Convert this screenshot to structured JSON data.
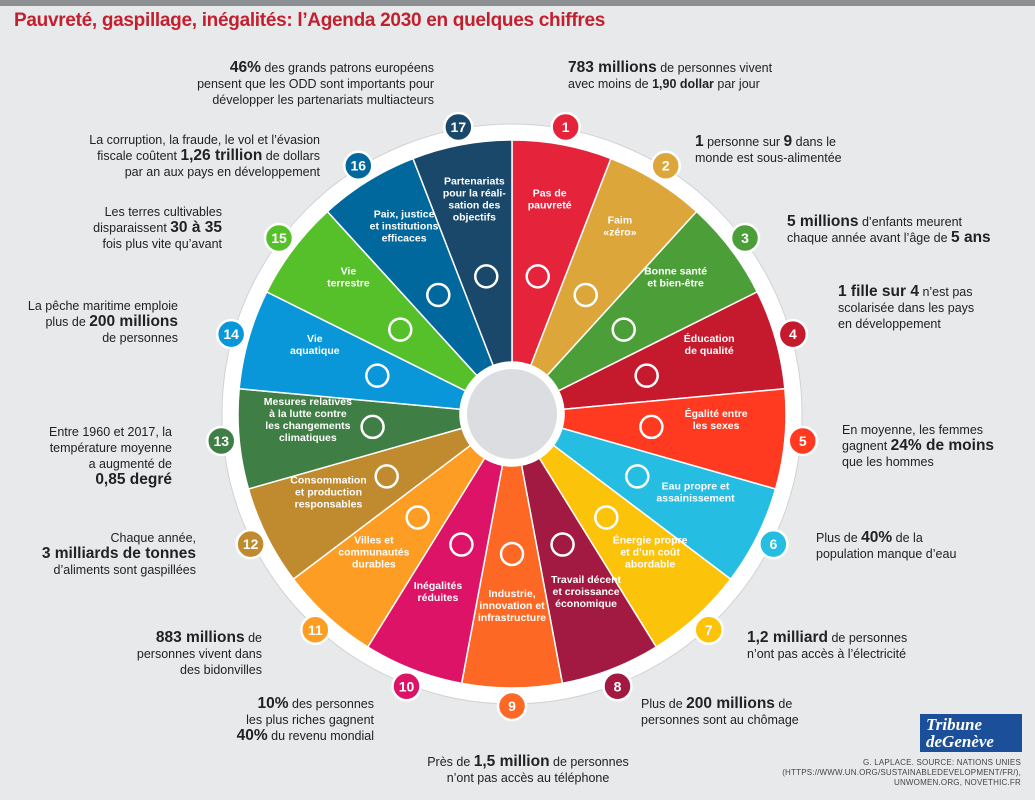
{
  "title": "Pauvreté, gaspillage, inégalités: l’Agenda 2030 en quelques chiffres",
  "colors": {
    "title": "#c3202f",
    "goals": [
      "#e5243b",
      "#dda63a",
      "#4c9f38",
      "#c5192d",
      "#ff3a21",
      "#26bde2",
      "#fcc30b",
      "#a21942",
      "#fd6925",
      "#dd1367",
      "#fd9d24",
      "#bf8b2e",
      "#3f7e44",
      "#0a97d9",
      "#56c02b",
      "#00689d",
      "#19486a"
    ]
  },
  "goals": [
    {
      "num": "1",
      "lines": [
        "Pas de",
        "pauvreté"
      ],
      "icon": "family-icon"
    },
    {
      "num": "2",
      "lines": [
        "Faim",
        "«zéro»"
      ],
      "icon": "bowl-icon"
    },
    {
      "num": "3",
      "lines": [
        "Bonne santé",
        "et bien-être"
      ],
      "icon": "heartbeat-icon"
    },
    {
      "num": "4",
      "lines": [
        "Éducation",
        "de qualité"
      ],
      "icon": "book-icon"
    },
    {
      "num": "5",
      "lines": [
        "Égalité entre",
        "les sexes"
      ],
      "icon": "gender-icon"
    },
    {
      "num": "6",
      "lines": [
        "Eau propre et",
        "assainissement"
      ],
      "icon": "water-icon"
    },
    {
      "num": "7",
      "lines": [
        "Énergie propre",
        "et d’un coût",
        "abordable"
      ],
      "icon": "sun-icon"
    },
    {
      "num": "8",
      "lines": [
        "Travail décent",
        "et croissance",
        "économique"
      ],
      "icon": "growth-chart-icon"
    },
    {
      "num": "9",
      "lines": [
        "Industrie,",
        "innovation et",
        "infrastructure"
      ],
      "icon": "cubes-icon"
    },
    {
      "num": "10",
      "lines": [
        "Inégalités",
        "réduites"
      ],
      "icon": "equal-arrows-icon"
    },
    {
      "num": "11",
      "lines": [
        "Villes et",
        "communautés",
        "durables"
      ],
      "icon": "city-icon"
    },
    {
      "num": "12",
      "lines": [
        "Consommation",
        "et production",
        "responsables"
      ],
      "icon": "infinity-icon"
    },
    {
      "num": "13",
      "lines": [
        "Mesures relatives",
        "à la lutte contre",
        "les changements",
        "climatiques"
      ],
      "icon": "eye-icon"
    },
    {
      "num": "14",
      "lines": [
        "Vie",
        "aquatique"
      ],
      "icon": "fish-icon"
    },
    {
      "num": "15",
      "lines": [
        "Vie",
        "terrestre"
      ],
      "icon": "tree-icon"
    },
    {
      "num": "16",
      "lines": [
        "Paix, justice",
        "et institutions",
        "efficaces"
      ],
      "icon": "dove-icon"
    },
    {
      "num": "17",
      "lines": [
        "Partenariats",
        "pour la réali-",
        "sation des",
        "objectifs"
      ],
      "icon": "rings-icon"
    }
  ],
  "facts": {
    "f1": {
      "b": "783 millions",
      "l1": " de personnes vivent",
      "l2a": "avec moins de ",
      "l2b": "1,90 dollar",
      "l2c": " par jour"
    },
    "f2": {
      "b1": "1",
      "a": " personne sur ",
      "b2": "9",
      "c": " dans le",
      "l2": "monde est sous-alimentée"
    },
    "f3": {
      "b1": "5 millions",
      "a": " d’enfants meurent",
      "l2a": "chaque année avant l’âge de ",
      "b2": "5 ans"
    },
    "f4": {
      "b": "1 fille sur 4",
      "a": " n’est pas",
      "l2": "scolarisée dans les pays",
      "l3": "en développement"
    },
    "f5": {
      "l1": "En moyenne, les femmes",
      "l2a": "gagnent ",
      "b": "24% de moins",
      "l3": "que les hommes"
    },
    "f6": {
      "a": "Plus de ",
      "b": "40%",
      "c": " de la",
      "l2": "population manque d’eau"
    },
    "f7": {
      "b": "1,2 milliard",
      "a": " de personnes",
      "l2": "n’ont pas accès à l’électricité"
    },
    "f8": {
      "a": "Plus de ",
      "b": "200 millions",
      "c": " de",
      "l2": "personnes sont au chômage"
    },
    "f9": {
      "a": "Près de ",
      "b": "1,5 million",
      "c": " de personnes",
      "l2": "n’ont pas accès au téléphone"
    },
    "f10": {
      "b1": "10%",
      "a": " des personnes",
      "l2": "les plus riches gagnent",
      "b2": "40%",
      "c": " du revenu mondial"
    },
    "f11": {
      "b": "883 millions",
      "a": " de",
      "l2": "personnes vivent dans",
      "l3": "des bidonvilles"
    },
    "f12": {
      "l1": "Chaque année,",
      "b": "3 milliards de tonnes",
      "l3": "d’aliments sont gaspillées"
    },
    "f13": {
      "l1": "Entre 1960 et 2017, la",
      "l2": "température moyenne",
      "l3": "a augmenté de",
      "b": "0,85 degré"
    },
    "f14": {
      "l1": "La pêche maritime emploie",
      "a": "plus de ",
      "b": "200 millions",
      "l3": "de personnes"
    },
    "f15": {
      "l1": "Les terres cultivables",
      "a": "disparaissent ",
      "b": "30 à 35",
      "l3": "fois plus vite qu’avant"
    },
    "f16": {
      "l1": "La corruption, la fraude, le vol et l’évasion",
      "a": "fiscale coûtent ",
      "b": "1,26 trillion",
      "c": " de dollars",
      "l3": "par an aux pays en développement"
    },
    "f17": {
      "b": "46%",
      "a": " des grands patrons européens",
      "l2": "pensent que les ODD sont importants pour",
      "l3": "développer les partenariats multiacteurs"
    }
  },
  "logo": {
    "line1": "Tribune",
    "line2": "deGenève"
  },
  "source": {
    "l1": "G. LAPLACE. SOURCE: NATIONS UNIES",
    "l2": "(HTTPS://WWW.UN.ORG/SUSTAINABLEDEVELOPMENT/FR/),",
    "l3": "UNWOMEN.ORG, NOVETHIC.FR"
  }
}
